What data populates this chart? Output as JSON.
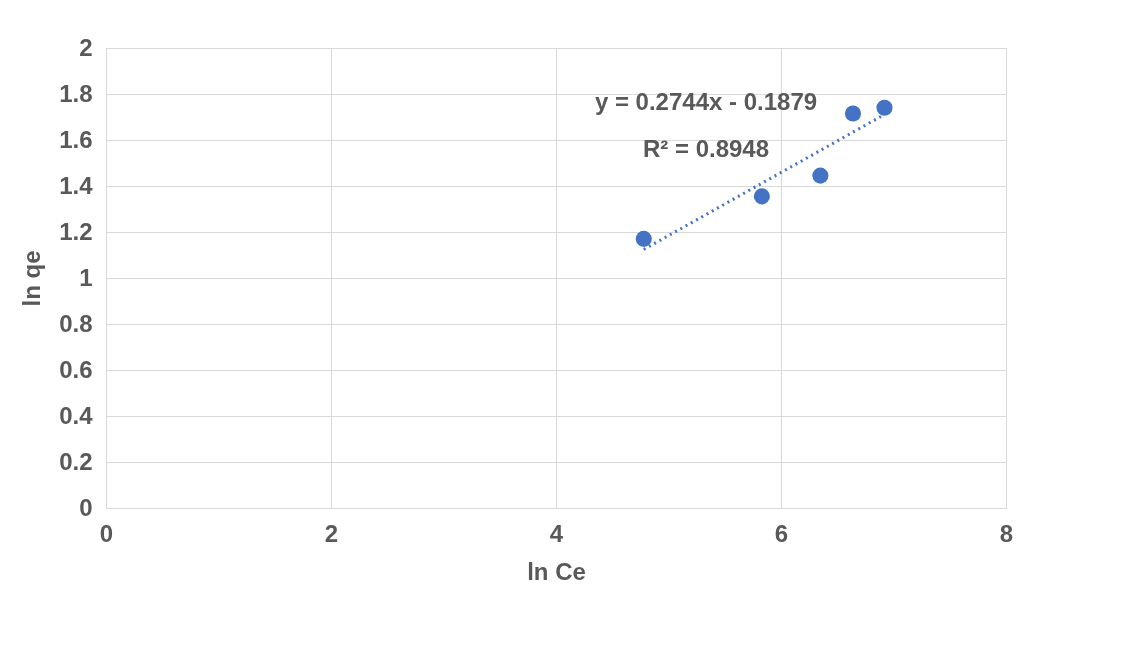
{
  "chart_data": {
    "type": "scatter",
    "xlabel": "ln Ce",
    "ylabel": "ln qe",
    "xlim": [
      0,
      8
    ],
    "xticks": [
      0,
      2,
      4,
      6,
      8
    ],
    "ylim": [
      0,
      2
    ],
    "yticks": [
      0,
      {
        "value": 0.2,
        "label": "0.2"
      },
      {
        "value": 0.4,
        "label": "0.4"
      },
      {
        "value": 0.6,
        "label": "0.6"
      },
      {
        "value": 0.8,
        "label": "0.8"
      },
      1,
      {
        "value": 1.2,
        "label": "1.2"
      },
      {
        "value": 1.4,
        "label": "1.4"
      },
      {
        "value": 1.6,
        "label": "1.6"
      },
      {
        "value": 1.8,
        "label": "1.8"
      },
      2
    ],
    "grid": true,
    "marker": "circle",
    "series": [
      {
        "color": "#4472c4",
        "x": [
          4.78,
          5.83,
          6.35,
          6.64,
          6.92
        ],
        "values": [
          1.17,
          1.355,
          1.445,
          1.715,
          1.74
        ]
      },
      {
        "type": "line",
        "color": "#4472c4",
        "line_style": "dotted",
        "marker": "none",
        "x": [
          4.78,
          6.92
        ],
        "values": [
          1.124,
          1.711
        ]
      }
    ],
    "annotations": [
      "y = 0.2744x - 0.1879",
      "R² = 0.8948"
    ]
  }
}
